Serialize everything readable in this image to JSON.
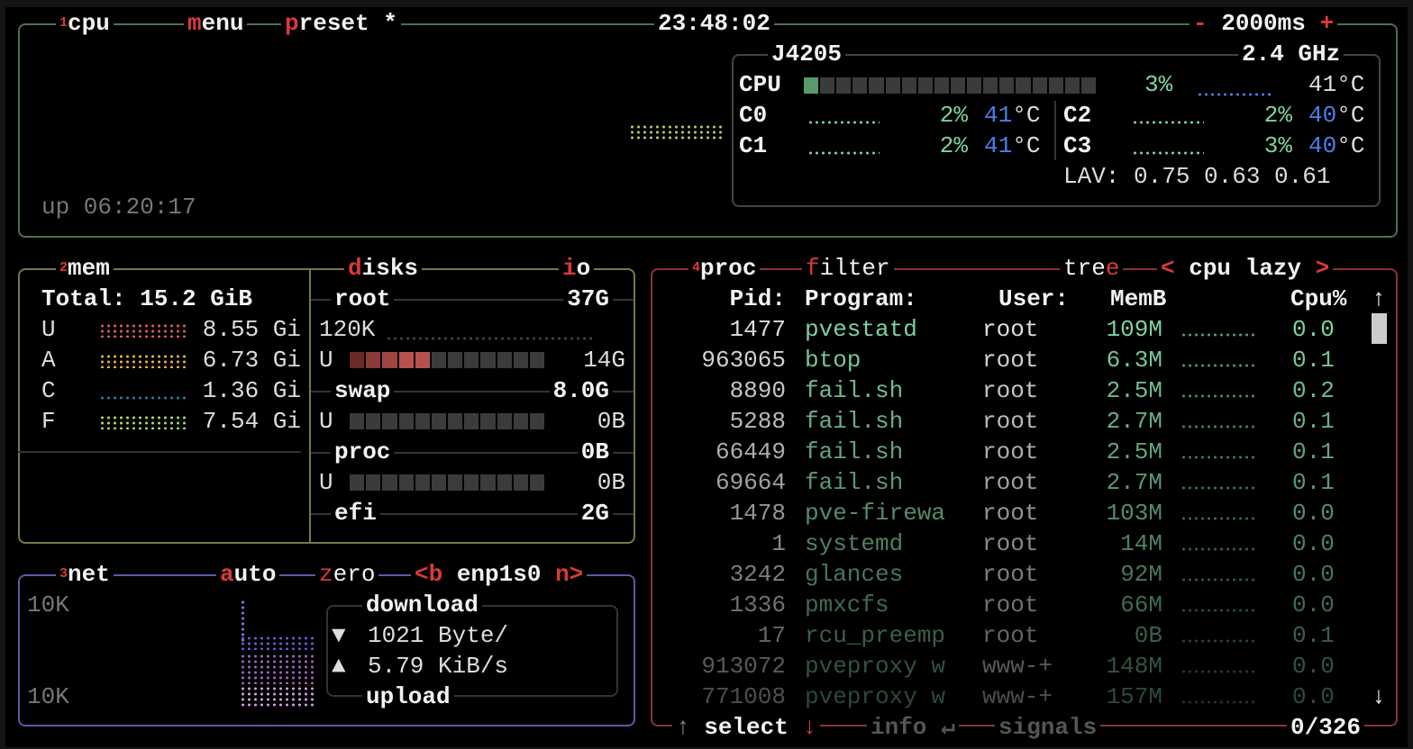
{
  "cpu_box": {
    "number": "1",
    "title": "cpu",
    "menu_label": "menu",
    "preset_label": "preset *",
    "clock": "23:48:02",
    "interval_minus": "-",
    "interval": "2000ms",
    "interval_plus": "+",
    "uptime": "up 06:20:17",
    "model": "J4205",
    "freq": "2.4 GHz",
    "total": {
      "label": "CPU",
      "percent": "3%",
      "temp": "41°C",
      "usage_fraction": 0.03
    },
    "cores": [
      {
        "label": "C0",
        "percent": "2%",
        "temp_value": "41",
        "temp_unit": "°C"
      },
      {
        "label": "C1",
        "percent": "2%",
        "temp_value": "41",
        "temp_unit": "°C"
      },
      {
        "label": "C2",
        "percent": "2%",
        "temp_value": "40",
        "temp_unit": "°C"
      },
      {
        "label": "C3",
        "percent": "3%",
        "temp_value": "40",
        "temp_unit": "°C"
      }
    ],
    "load_avg": "LAV: 0.75 0.63 0.61"
  },
  "mem_box": {
    "number": "2",
    "title": "mem",
    "total": "Total: 15.2 GiB",
    "rows": [
      {
        "label": "U",
        "value": "8.55 Gi",
        "color": "#e05a5a"
      },
      {
        "label": "A",
        "value": "6.73 Gi",
        "color": "#e8b040"
      },
      {
        "label": "C",
        "value": "1.36 Gi",
        "color": "#2a7aa0"
      },
      {
        "label": "F",
        "value": "7.54 Gi",
        "color": "#a8d860"
      }
    ]
  },
  "disks_box": {
    "title": "disks",
    "io_label": "io",
    "disks": [
      {
        "name": "root",
        "size": "37G",
        "io": "120K",
        "used_label": "U",
        "used": "14G",
        "used_fraction": 0.38
      },
      {
        "name": "swap",
        "size": "8.0G",
        "used_label": "U",
        "used": "0B",
        "used_fraction": 0
      },
      {
        "name": "proc",
        "size": "0B",
        "used_label": "U",
        "used": "0B",
        "used_fraction": 0
      },
      {
        "name": "efi",
        "size": "2G"
      }
    ]
  },
  "net_box": {
    "number": "3",
    "title": "net",
    "auto_label": "auto",
    "zero_label": "zero",
    "prev_label": "<b",
    "interface": "enp1s0",
    "next_label": "n>",
    "scale_top": "10K",
    "scale_bottom": "10K",
    "download_title": "download",
    "download_value": "1021 Byte/",
    "upload_value": "5.79 KiB/s",
    "upload_title": "upload"
  },
  "proc_box": {
    "number": "4",
    "title": "proc",
    "filter_label": "filter",
    "tree_label": "tree",
    "sort_prev": "<",
    "sort_label": "cpu lazy",
    "sort_next": ">",
    "columns": {
      "pid": "Pid:",
      "program": "Program:",
      "user": "User:",
      "mem": "MemB",
      "cpu": "Cpu%"
    },
    "rows": [
      {
        "pid": "1477",
        "program": "pvestatd",
        "user": "root",
        "mem": "109M",
        "cpu": "0.0"
      },
      {
        "pid": "963065",
        "program": "btop",
        "user": "root",
        "mem": "6.3M",
        "cpu": "0.1"
      },
      {
        "pid": "8890",
        "program": "fail.sh",
        "user": "root",
        "mem": "2.5M",
        "cpu": "0.2"
      },
      {
        "pid": "5288",
        "program": "fail.sh",
        "user": "root",
        "mem": "2.7M",
        "cpu": "0.1"
      },
      {
        "pid": "66449",
        "program": "fail.sh",
        "user": "root",
        "mem": "2.5M",
        "cpu": "0.1"
      },
      {
        "pid": "69664",
        "program": "fail.sh",
        "user": "root",
        "mem": "2.7M",
        "cpu": "0.1"
      },
      {
        "pid": "1478",
        "program": "pve-firewa",
        "user": "root",
        "mem": "103M",
        "cpu": "0.0"
      },
      {
        "pid": "1",
        "program": "systemd",
        "user": "root",
        "mem": "14M",
        "cpu": "0.0"
      },
      {
        "pid": "3242",
        "program": "glances",
        "user": "root",
        "mem": "92M",
        "cpu": "0.0"
      },
      {
        "pid": "1336",
        "program": "pmxcfs",
        "user": "root",
        "mem": "66M",
        "cpu": "0.0"
      },
      {
        "pid": "17",
        "program": "rcu_preemp",
        "user": "root",
        "mem": "0B",
        "cpu": "0.1"
      },
      {
        "pid": "913072",
        "program": "pveproxy w",
        "user": "www-+",
        "mem": "148M",
        "cpu": "0.0"
      },
      {
        "pid": "771008",
        "program": "pveproxy w",
        "user": "www-+",
        "mem": "157M",
        "cpu": "0.0"
      }
    ],
    "footer": {
      "up_arrow": "↑",
      "select": "select",
      "down_arrow": "↓",
      "info": "info",
      "enter": "↵",
      "signals": "signals",
      "count": "0/326"
    },
    "scroll_up": "↑",
    "scroll_down": "↓"
  },
  "colors": {
    "cpu_border": "#4f6f52",
    "mem_border": "#77774a",
    "net_border": "#5a5aa8",
    "proc_border": "#8a3434",
    "accent": "#d83a3a",
    "ok_green": "#7fd0a0",
    "temp_blue": "#4a7fe8"
  }
}
